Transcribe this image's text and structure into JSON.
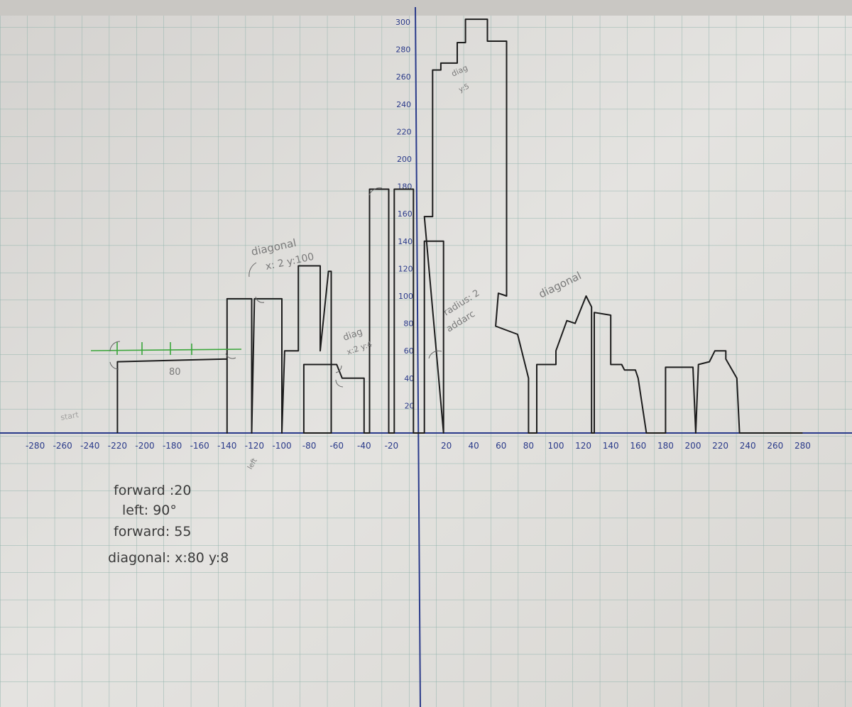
{
  "axes": {
    "x_ticks": [
      "-280",
      "-260",
      "-240",
      "-220",
      "-200",
      "-180",
      "-160",
      "-140",
      "-120",
      "-100",
      "-80",
      "-60",
      "-40",
      "-20",
      "20",
      "40",
      "60",
      "80",
      "100",
      "120",
      "140",
      "160",
      "180",
      "200",
      "220",
      "240",
      "260",
      "280"
    ],
    "x_values": [
      -280,
      -260,
      -240,
      -220,
      -200,
      -180,
      -160,
      -140,
      -120,
      -100,
      -80,
      -60,
      -40,
      -20,
      20,
      40,
      60,
      80,
      100,
      120,
      140,
      160,
      180,
      200,
      220,
      240,
      260,
      280
    ],
    "y_ticks": [
      "20",
      "40",
      "60",
      "80",
      "100",
      "120",
      "140",
      "160",
      "180",
      "200",
      "220",
      "240",
      "260",
      "280",
      "300"
    ],
    "y_values": [
      20,
      40,
      60,
      80,
      100,
      120,
      140,
      160,
      180,
      200,
      220,
      240,
      260,
      280,
      300
    ]
  },
  "notes": {
    "line1": "forward :20",
    "line2": "left: 90°",
    "line3": "forward: 55",
    "line4": "diagonal: x:80 y:8"
  },
  "annotations": {
    "diagonal_top": "diagonal",
    "diagonal_top_params": "x: 2 y:100",
    "diag_mid": "diag",
    "diag_mid_params": "x:2 y:4",
    "diag_tower": "diag",
    "diag_tower_params": "y:5",
    "radius": "radius: 2",
    "addarc": "addarc",
    "diagonal_right": "diagonal",
    "eighty": "80",
    "start": "start",
    "left": "left"
  },
  "skyline": {
    "outline": [
      [
        -220,
        0
      ],
      [
        -220,
        52
      ],
      [
        -140,
        54
      ],
      [
        -140,
        0
      ],
      [
        -140,
        98
      ],
      [
        -122,
        98
      ],
      [
        -122,
        0
      ],
      [
        -120,
        98
      ],
      [
        -100,
        98
      ],
      [
        -100,
        0
      ],
      [
        -98,
        60
      ],
      [
        -88,
        60
      ],
      [
        -88,
        122
      ],
      [
        -72,
        122
      ],
      [
        -72,
        60
      ],
      [
        -66,
        118
      ],
      [
        -64,
        118
      ],
      [
        -64,
        0
      ],
      [
        -84,
        0
      ],
      [
        -84,
        50
      ],
      [
        -60,
        50
      ],
      [
        -56,
        40
      ],
      [
        -40,
        40
      ],
      [
        -40,
        0
      ],
      [
        -36,
        0
      ],
      [
        -36,
        178
      ],
      [
        -22,
        178
      ],
      [
        -22,
        0
      ],
      [
        -18,
        0
      ],
      [
        -18,
        178
      ],
      [
        -4,
        178
      ],
      [
        -4,
        0
      ],
      [
        4,
        0
      ],
      [
        4,
        140
      ],
      [
        18,
        140
      ],
      [
        18,
        0
      ],
      [
        4,
        158
      ],
      [
        10,
        158
      ],
      [
        10,
        265
      ],
      [
        16,
        265
      ],
      [
        16,
        270
      ],
      [
        28,
        270
      ],
      [
        28,
        285
      ],
      [
        34,
        285
      ],
      [
        34,
        302
      ],
      [
        50,
        302
      ],
      [
        50,
        286
      ],
      [
        64,
        286
      ],
      [
        64,
        100
      ],
      [
        58,
        102
      ],
      [
        56,
        78
      ],
      [
        72,
        72
      ],
      [
        80,
        40
      ],
      [
        80,
        0
      ],
      [
        86,
        0
      ],
      [
        86,
        50
      ],
      [
        100,
        50
      ],
      [
        100,
        60
      ],
      [
        108,
        82
      ],
      [
        114,
        80
      ],
      [
        122,
        100
      ],
      [
        126,
        92
      ],
      [
        126,
        0
      ],
      [
        128,
        0
      ],
      [
        128,
        88
      ],
      [
        140,
        86
      ],
      [
        140,
        50
      ],
      [
        148,
        50
      ],
      [
        150,
        46
      ],
      [
        158,
        46
      ],
      [
        160,
        40
      ],
      [
        166,
        0
      ],
      [
        168,
        0
      ],
      [
        168,
        0
      ],
      [
        180,
        0
      ],
      [
        180,
        48
      ],
      [
        200,
        48
      ],
      [
        202,
        0
      ],
      [
        204,
        50
      ],
      [
        212,
        52
      ],
      [
        216,
        60
      ],
      [
        224,
        60
      ],
      [
        224,
        54
      ],
      [
        232,
        40
      ],
      [
        234,
        0
      ],
      [
        280,
        0
      ]
    ]
  }
}
